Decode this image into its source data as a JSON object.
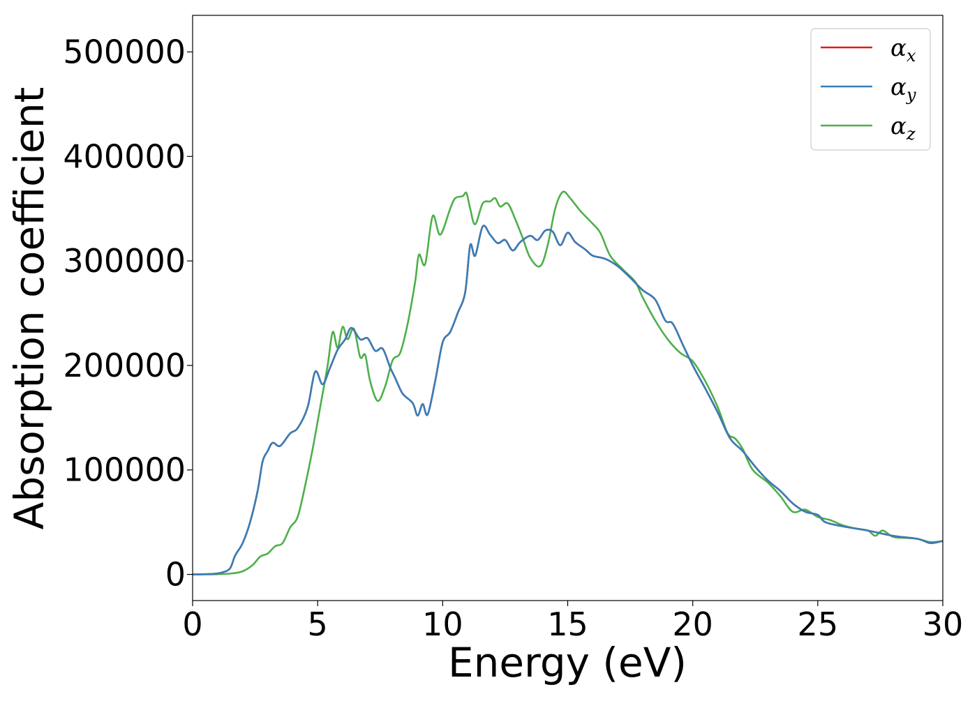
{
  "chart_data": {
    "type": "line",
    "xlabel": "Energy (eV)",
    "ylabel": "Absorption coefficient",
    "xlim": [
      0,
      30
    ],
    "ylim": [
      -25000,
      535000
    ],
    "x_ticks": [
      0,
      5,
      10,
      15,
      20,
      25,
      30
    ],
    "x_tick_labels": [
      "0",
      "5",
      "10",
      "15",
      "20",
      "25",
      "30"
    ],
    "y_ticks": [
      0,
      100000,
      200000,
      300000,
      400000,
      500000
    ],
    "y_tick_labels": [
      "0",
      "100000",
      "200000",
      "300000",
      "400000",
      "500000"
    ],
    "grid": false,
    "legend_position": "top-right",
    "series": [
      {
        "name": "αx",
        "legend_symbol": "α",
        "legend_sub": "x",
        "color": "#e41a1c",
        "points": [
          [
            0,
            0
          ],
          [
            0.8,
            500
          ],
          [
            1.2,
            2000
          ],
          [
            1.5,
            6000
          ],
          [
            1.7,
            18000
          ],
          [
            2.0,
            30000
          ],
          [
            2.3,
            50000
          ],
          [
            2.6,
            80000
          ],
          [
            2.8,
            108000
          ],
          [
            3.0,
            118000
          ],
          [
            3.2,
            126000
          ],
          [
            3.5,
            123000
          ],
          [
            3.9,
            135000
          ],
          [
            4.2,
            140000
          ],
          [
            4.6,
            160000
          ],
          [
            4.9,
            194000
          ],
          [
            5.2,
            182000
          ],
          [
            5.5,
            198000
          ],
          [
            5.8,
            215000
          ],
          [
            6.1,
            225000
          ],
          [
            6.35,
            236000
          ],
          [
            6.7,
            225000
          ],
          [
            7.0,
            226000
          ],
          [
            7.3,
            214000
          ],
          [
            7.6,
            216000
          ],
          [
            7.9,
            198000
          ],
          [
            8.1,
            188000
          ],
          [
            8.4,
            173000
          ],
          [
            8.8,
            164000
          ],
          [
            9.0,
            152000
          ],
          [
            9.2,
            163000
          ],
          [
            9.4,
            153000
          ],
          [
            9.7,
            185000
          ],
          [
            10.0,
            222000
          ],
          [
            10.3,
            232000
          ],
          [
            10.6,
            250000
          ],
          [
            10.9,
            270000
          ],
          [
            11.1,
            315000
          ],
          [
            11.3,
            305000
          ],
          [
            11.6,
            333000
          ],
          [
            11.9,
            325000
          ],
          [
            12.2,
            317000
          ],
          [
            12.5,
            320000
          ],
          [
            12.8,
            310000
          ],
          [
            13.1,
            318000
          ],
          [
            13.5,
            324000
          ],
          [
            13.8,
            320000
          ],
          [
            14.1,
            329000
          ],
          [
            14.4,
            328000
          ],
          [
            14.7,
            315000
          ],
          [
            15.0,
            327000
          ],
          [
            15.3,
            318000
          ],
          [
            15.7,
            311000
          ],
          [
            16.0,
            305000
          ],
          [
            16.5,
            302000
          ],
          [
            17.0,
            295000
          ],
          [
            17.5,
            284000
          ],
          [
            18.0,
            272000
          ],
          [
            18.5,
            263000
          ],
          [
            18.9,
            243000
          ],
          [
            19.2,
            240000
          ],
          [
            19.6,
            220000
          ],
          [
            20.0,
            200000
          ],
          [
            20.5,
            178000
          ],
          [
            21.0,
            155000
          ],
          [
            21.5,
            130000
          ],
          [
            22.0,
            118000
          ],
          [
            22.5,
            103000
          ],
          [
            23.0,
            90000
          ],
          [
            23.5,
            80000
          ],
          [
            24.0,
            68000
          ],
          [
            24.5,
            60000
          ],
          [
            25.0,
            57000
          ],
          [
            25.3,
            50000
          ],
          [
            26.0,
            46000
          ],
          [
            27.0,
            42000
          ],
          [
            28.0,
            37000
          ],
          [
            29.0,
            34000
          ],
          [
            29.5,
            30000
          ],
          [
            30.0,
            32000
          ]
        ]
      },
      {
        "name": "αy",
        "legend_symbol": "α",
        "legend_sub": "y",
        "color": "#377eb8",
        "points": [
          [
            0,
            0
          ],
          [
            0.8,
            500
          ],
          [
            1.2,
            2000
          ],
          [
            1.5,
            6000
          ],
          [
            1.7,
            18000
          ],
          [
            2.0,
            30000
          ],
          [
            2.3,
            50000
          ],
          [
            2.6,
            80000
          ],
          [
            2.8,
            108000
          ],
          [
            3.0,
            118000
          ],
          [
            3.2,
            126000
          ],
          [
            3.5,
            123000
          ],
          [
            3.9,
            135000
          ],
          [
            4.2,
            140000
          ],
          [
            4.6,
            160000
          ],
          [
            4.9,
            194000
          ],
          [
            5.2,
            182000
          ],
          [
            5.5,
            198000
          ],
          [
            5.8,
            215000
          ],
          [
            6.1,
            225000
          ],
          [
            6.35,
            236000
          ],
          [
            6.7,
            225000
          ],
          [
            7.0,
            226000
          ],
          [
            7.3,
            214000
          ],
          [
            7.6,
            216000
          ],
          [
            7.9,
            198000
          ],
          [
            8.1,
            188000
          ],
          [
            8.4,
            173000
          ],
          [
            8.8,
            164000
          ],
          [
            9.0,
            152000
          ],
          [
            9.2,
            163000
          ],
          [
            9.4,
            153000
          ],
          [
            9.7,
            185000
          ],
          [
            10.0,
            222000
          ],
          [
            10.3,
            232000
          ],
          [
            10.6,
            250000
          ],
          [
            10.9,
            270000
          ],
          [
            11.1,
            315000
          ],
          [
            11.3,
            305000
          ],
          [
            11.6,
            333000
          ],
          [
            11.9,
            325000
          ],
          [
            12.2,
            317000
          ],
          [
            12.5,
            320000
          ],
          [
            12.8,
            310000
          ],
          [
            13.1,
            318000
          ],
          [
            13.5,
            324000
          ],
          [
            13.8,
            320000
          ],
          [
            14.1,
            329000
          ],
          [
            14.4,
            328000
          ],
          [
            14.7,
            315000
          ],
          [
            15.0,
            327000
          ],
          [
            15.3,
            318000
          ],
          [
            15.7,
            311000
          ],
          [
            16.0,
            305000
          ],
          [
            16.5,
            302000
          ],
          [
            17.0,
            295000
          ],
          [
            17.5,
            284000
          ],
          [
            18.0,
            272000
          ],
          [
            18.5,
            263000
          ],
          [
            18.9,
            243000
          ],
          [
            19.2,
            240000
          ],
          [
            19.6,
            220000
          ],
          [
            20.0,
            200000
          ],
          [
            20.5,
            178000
          ],
          [
            21.0,
            155000
          ],
          [
            21.5,
            130000
          ],
          [
            22.0,
            118000
          ],
          [
            22.5,
            103000
          ],
          [
            23.0,
            90000
          ],
          [
            23.5,
            80000
          ],
          [
            24.0,
            68000
          ],
          [
            24.5,
            60000
          ],
          [
            25.0,
            57000
          ],
          [
            25.3,
            50000
          ],
          [
            26.0,
            46000
          ],
          [
            27.0,
            42000
          ],
          [
            28.0,
            37000
          ],
          [
            29.0,
            34000
          ],
          [
            29.5,
            30000
          ],
          [
            30.0,
            32000
          ]
        ]
      },
      {
        "name": "αz",
        "legend_symbol": "α",
        "legend_sub": "z",
        "color": "#4daf4a",
        "points": [
          [
            0,
            0
          ],
          [
            1.0,
            200
          ],
          [
            1.6,
            1000
          ],
          [
            2.0,
            3000
          ],
          [
            2.4,
            9000
          ],
          [
            2.7,
            17000
          ],
          [
            3.0,
            20000
          ],
          [
            3.3,
            27000
          ],
          [
            3.6,
            30000
          ],
          [
            3.9,
            45000
          ],
          [
            4.2,
            55000
          ],
          [
            4.5,
            85000
          ],
          [
            4.8,
            120000
          ],
          [
            5.1,
            160000
          ],
          [
            5.4,
            200000
          ],
          [
            5.6,
            232000
          ],
          [
            5.8,
            217000
          ],
          [
            6.0,
            237000
          ],
          [
            6.2,
            225000
          ],
          [
            6.45,
            235000
          ],
          [
            6.7,
            208000
          ],
          [
            6.9,
            210000
          ],
          [
            7.1,
            185000
          ],
          [
            7.4,
            166000
          ],
          [
            7.7,
            180000
          ],
          [
            8.0,
            205000
          ],
          [
            8.3,
            212000
          ],
          [
            8.6,
            240000
          ],
          [
            8.9,
            280000
          ],
          [
            9.05,
            306000
          ],
          [
            9.3,
            297000
          ],
          [
            9.6,
            343000
          ],
          [
            9.9,
            325000
          ],
          [
            10.3,
            350000
          ],
          [
            10.5,
            360000
          ],
          [
            10.8,
            362000
          ],
          [
            10.95,
            365000
          ],
          [
            11.1,
            350000
          ],
          [
            11.3,
            335000
          ],
          [
            11.6,
            355000
          ],
          [
            11.9,
            357000
          ],
          [
            12.1,
            360000
          ],
          [
            12.3,
            352000
          ],
          [
            12.6,
            355000
          ],
          [
            12.9,
            340000
          ],
          [
            13.2,
            322000
          ],
          [
            13.5,
            303000
          ],
          [
            13.9,
            295000
          ],
          [
            14.2,
            315000
          ],
          [
            14.5,
            350000
          ],
          [
            14.8,
            366000
          ],
          [
            15.1,
            360000
          ],
          [
            15.5,
            348000
          ],
          [
            15.9,
            338000
          ],
          [
            16.3,
            327000
          ],
          [
            16.7,
            305000
          ],
          [
            17.2,
            292000
          ],
          [
            17.7,
            280000
          ],
          [
            18.0,
            265000
          ],
          [
            18.5,
            243000
          ],
          [
            19.0,
            225000
          ],
          [
            19.5,
            212000
          ],
          [
            20.0,
            204000
          ],
          [
            20.5,
            185000
          ],
          [
            21.0,
            160000
          ],
          [
            21.4,
            135000
          ],
          [
            21.7,
            130000
          ],
          [
            22.0,
            120000
          ],
          [
            22.4,
            100000
          ],
          [
            23.0,
            88000
          ],
          [
            23.5,
            75000
          ],
          [
            24.0,
            60000
          ],
          [
            24.5,
            62000
          ],
          [
            25.0,
            55000
          ],
          [
            25.5,
            52000
          ],
          [
            26.0,
            47000
          ],
          [
            26.5,
            44000
          ],
          [
            27.0,
            42000
          ],
          [
            27.3,
            37000
          ],
          [
            27.6,
            42000
          ],
          [
            28.0,
            36000
          ],
          [
            28.5,
            35000
          ],
          [
            29.0,
            34000
          ],
          [
            29.5,
            31000
          ],
          [
            30.0,
            32000
          ]
        ]
      }
    ]
  }
}
